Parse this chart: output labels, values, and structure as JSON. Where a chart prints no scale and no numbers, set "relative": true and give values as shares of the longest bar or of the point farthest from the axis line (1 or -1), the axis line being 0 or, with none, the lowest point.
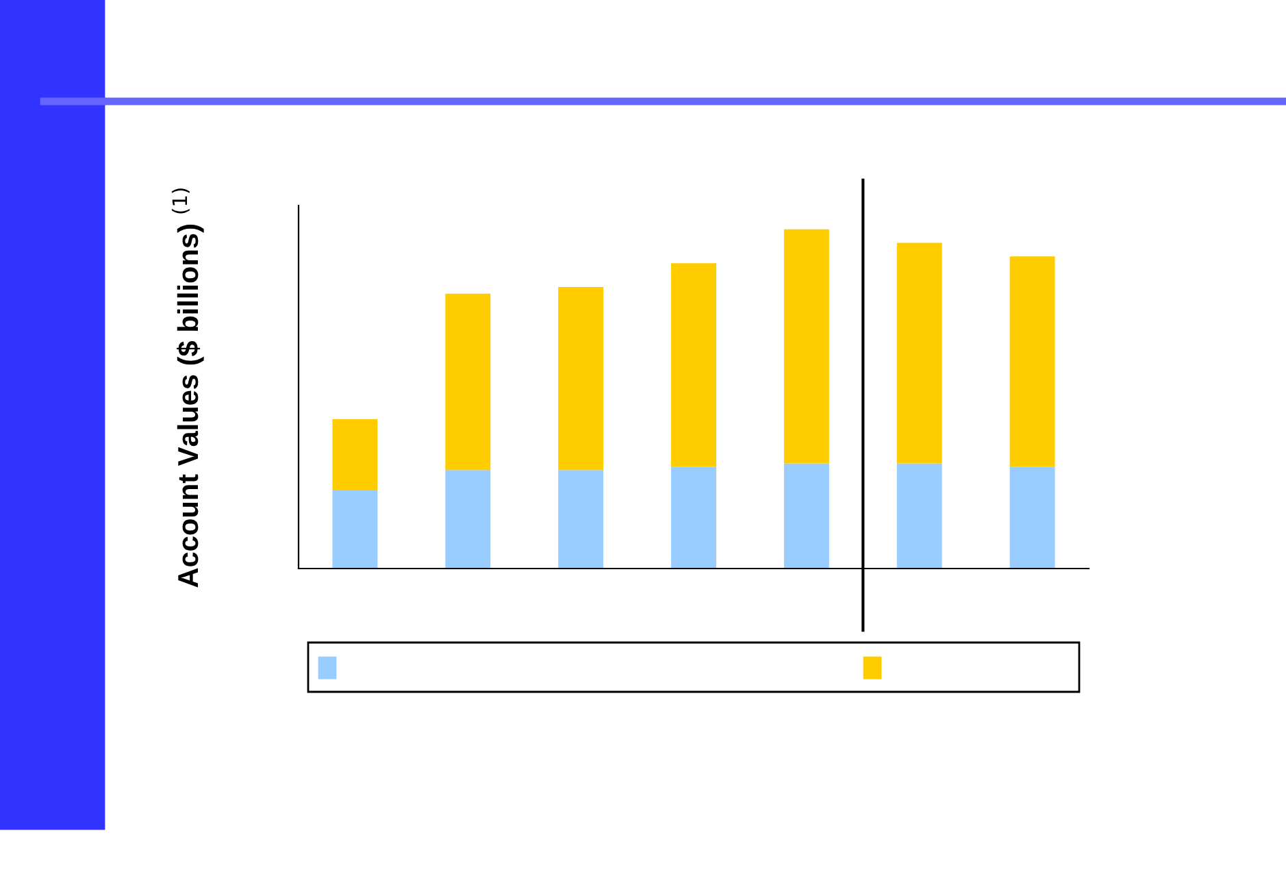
{
  "chart_data": {
    "type": "bar",
    "stacked": true,
    "relative": true,
    "ylabel": "Account Values ($ billions) $^{(1)}$",
    "categories": [
      null,
      null,
      null,
      null,
      null,
      null,
      null
    ],
    "series": [
      {
        "color": "#99ccff",
        "values": [
          0.23,
          0.29,
          0.29,
          0.3,
          0.31,
          0.31,
          0.3
        ]
      },
      {
        "color": "#ffcc00",
        "values": [
          0.21,
          0.52,
          0.54,
          0.6,
          0.69,
          0.65,
          0.62
        ]
      }
    ],
    "grid": false
  }
}
